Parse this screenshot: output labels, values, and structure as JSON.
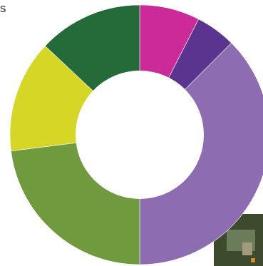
{
  "page": {
    "corner_text": "s"
  },
  "chart_data": {
    "type": "pie",
    "donut": true,
    "title": "",
    "start_angle_deg": 0,
    "direction": "clockwise",
    "categories": [
      "",
      "",
      "",
      "",
      "",
      ""
    ],
    "values": [
      7.5,
      5.0,
      37.5,
      23.0,
      14.0,
      13.0
    ],
    "colors": [
      "#cc2a99",
      "#5b3490",
      "#8e6cb1",
      "#6f9a3e",
      "#d5d625",
      "#256a39"
    ],
    "legend": "none"
  }
}
